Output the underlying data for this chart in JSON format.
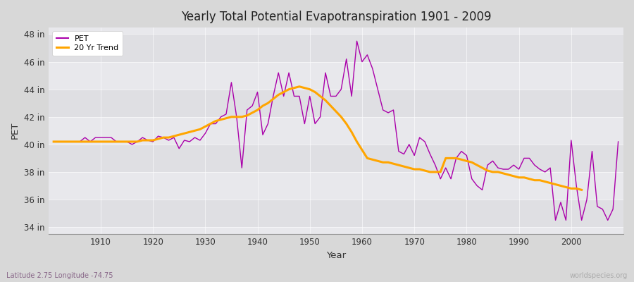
{
  "title": "Yearly Total Potential Evapotranspiration 1901 - 2009",
  "xlabel": "Year",
  "ylabel": "PET",
  "fig_bg_color": "#d8d8d8",
  "plot_bg_color": "#e8e8ec",
  "plot_bg_color_alt": "#d8d8dc",
  "pet_color": "#aa00aa",
  "trend_color": "#FFA500",
  "pet_label": "PET",
  "trend_label": "20 Yr Trend",
  "footnote_left": "Latitude 2.75 Longitude -74.75",
  "footnote_right": "worldspecies.org",
  "ylim": [
    33.5,
    48.5
  ],
  "yticks": [
    34,
    36,
    38,
    40,
    42,
    44,
    46,
    48
  ],
  "ytick_labels": [
    "34 in",
    "36 in",
    "38 in",
    "40 in",
    "42 in",
    "44 in",
    "46 in",
    "48 in"
  ],
  "xlim": [
    1900,
    2010
  ],
  "xticks": [
    1910,
    1920,
    1930,
    1940,
    1950,
    1960,
    1970,
    1980,
    1990,
    2000
  ],
  "years": [
    1901,
    1902,
    1903,
    1904,
    1905,
    1906,
    1907,
    1908,
    1909,
    1910,
    1911,
    1912,
    1913,
    1914,
    1915,
    1916,
    1917,
    1918,
    1919,
    1920,
    1921,
    1922,
    1923,
    1924,
    1925,
    1926,
    1927,
    1928,
    1929,
    1930,
    1931,
    1932,
    1933,
    1934,
    1935,
    1936,
    1937,
    1938,
    1939,
    1940,
    1941,
    1942,
    1943,
    1944,
    1945,
    1946,
    1947,
    1948,
    1949,
    1950,
    1951,
    1952,
    1953,
    1954,
    1955,
    1956,
    1957,
    1958,
    1959,
    1960,
    1961,
    1962,
    1963,
    1964,
    1965,
    1966,
    1967,
    1968,
    1969,
    1970,
    1971,
    1972,
    1973,
    1974,
    1975,
    1976,
    1977,
    1978,
    1979,
    1980,
    1981,
    1982,
    1983,
    1984,
    1985,
    1986,
    1987,
    1988,
    1989,
    1990,
    1991,
    1992,
    1993,
    1994,
    1995,
    1996,
    1997,
    1998,
    1999,
    2000,
    2001,
    2002,
    2003,
    2004,
    2005,
    2006,
    2007,
    2008,
    2009
  ],
  "pet_values": [
    40.2,
    40.2,
    40.2,
    40.2,
    40.2,
    40.2,
    40.5,
    40.2,
    40.5,
    40.5,
    40.5,
    40.5,
    40.2,
    40.2,
    40.2,
    40.0,
    40.2,
    40.5,
    40.3,
    40.2,
    40.6,
    40.5,
    40.3,
    40.5,
    39.7,
    40.3,
    40.2,
    40.5,
    40.3,
    40.8,
    41.5,
    41.5,
    42.0,
    42.2,
    44.5,
    42.0,
    38.3,
    42.5,
    42.8,
    43.8,
    40.7,
    41.5,
    43.5,
    45.2,
    43.5,
    45.2,
    43.5,
    43.5,
    41.5,
    43.5,
    41.5,
    42.0,
    45.2,
    43.5,
    43.5,
    44.0,
    46.2,
    43.5,
    47.5,
    46.0,
    46.5,
    45.5,
    44.0,
    42.5,
    42.3,
    42.5,
    39.5,
    39.3,
    40.0,
    39.2,
    40.5,
    40.2,
    39.3,
    38.5,
    37.5,
    38.3,
    37.5,
    39.0,
    39.5,
    39.2,
    37.5,
    37.0,
    36.7,
    38.5,
    38.8,
    38.3,
    38.2,
    38.2,
    38.5,
    38.2,
    39.0,
    39.0,
    38.5,
    38.2,
    38.0,
    38.3,
    34.5,
    35.8,
    34.5,
    40.3,
    37.0,
    34.5,
    36.0,
    39.5,
    35.5,
    35.3,
    34.5,
    35.3,
    40.2
  ],
  "trend_values": [
    40.2,
    40.2,
    40.2,
    40.2,
    40.2,
    40.2,
    40.2,
    40.2,
    40.2,
    40.2,
    40.2,
    40.2,
    40.2,
    40.2,
    40.2,
    40.2,
    40.2,
    40.3,
    40.3,
    40.3,
    40.4,
    40.5,
    40.5,
    40.6,
    40.7,
    40.8,
    40.9,
    41.0,
    41.1,
    41.3,
    41.5,
    41.7,
    41.8,
    41.9,
    42.0,
    42.0,
    42.0,
    42.1,
    42.3,
    42.5,
    42.8,
    43.0,
    43.3,
    43.6,
    43.8,
    44.0,
    44.1,
    44.2,
    44.1,
    44.0,
    43.8,
    43.5,
    43.2,
    42.8,
    42.4,
    42.0,
    41.5,
    40.9,
    40.2,
    39.6,
    39.0,
    38.9,
    38.8,
    38.7,
    38.7,
    38.6,
    38.5,
    38.4,
    38.3,
    38.2,
    38.2,
    38.1,
    38.0,
    38.0,
    38.0,
    39.0,
    39.0,
    39.0,
    38.9,
    38.8,
    38.7,
    38.5,
    38.3,
    38.1,
    38.0,
    38.0,
    37.9,
    37.8,
    37.7,
    37.6,
    37.6,
    37.5,
    37.4,
    37.4,
    37.3,
    37.2,
    37.1,
    37.0,
    36.9,
    36.8,
    36.8,
    36.7,
    null,
    null,
    null,
    null,
    null,
    null,
    null
  ]
}
